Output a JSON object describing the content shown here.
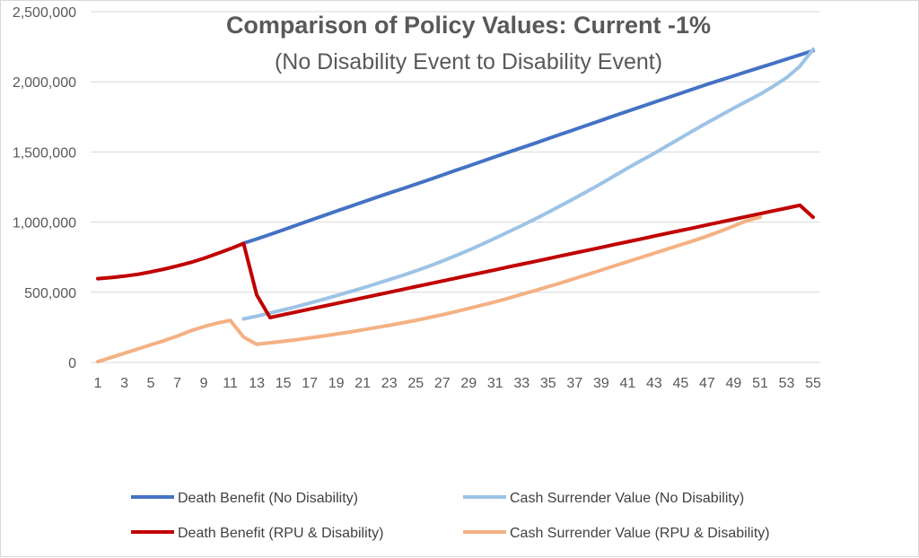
{
  "chart_data": {
    "type": "line",
    "title": "Comparison of Policy Values: Current -1%",
    "subtitle": "(No Disability Event to Disability Event)",
    "xlabel": "",
    "ylabel": "",
    "ylim": [
      0,
      2500000
    ],
    "y_ticks": [
      0,
      500000,
      1000000,
      1500000,
      2000000,
      2500000
    ],
    "y_tick_labels": [
      "0",
      "500,000",
      "1,000,000",
      "1,500,000",
      "2,000,000",
      "2,500,000"
    ],
    "x_tick_labels": [
      "1",
      "3",
      "5",
      "7",
      "9",
      "11",
      "13",
      "15",
      "17",
      "19",
      "21",
      "23",
      "25",
      "27",
      "29",
      "31",
      "33",
      "35",
      "37",
      "39",
      "41",
      "43",
      "45",
      "47",
      "49",
      "51",
      "53",
      "55"
    ],
    "grid": "horizontal",
    "legend_position": "bottom",
    "series": [
      {
        "name": "Death Benefit (No Disability)",
        "color": "#4472c4",
        "x_start": 12,
        "values": [
          850000,
          880000,
          912000,
          945000,
          978000,
          1012000,
          1045000,
          1078000,
          1110000,
          1143000,
          1175000,
          1207000,
          1238000,
          1270000,
          1302000,
          1335000,
          1368000,
          1400000,
          1433000,
          1466000,
          1498000,
          1530000,
          1562000,
          1595000,
          1628000,
          1660000,
          1693000,
          1725000,
          1758000,
          1790000,
          1822000,
          1854000,
          1886000,
          1918000,
          1950000,
          1982000,
          2012000,
          2042000,
          2072000,
          2102000,
          2132000,
          2162000,
          2192000,
          2222000
        ]
      },
      {
        "name": "Cash Surrender Value (No Disability)",
        "color": "#9dc3e6",
        "x_start": 12,
        "values": [
          310000,
          330000,
          352000,
          375000,
          398000,
          423000,
          449000,
          476000,
          503000,
          531000,
          560000,
          590000,
          620000,
          652000,
          686000,
          722000,
          760000,
          800000,
          842000,
          886000,
          930000,
          975000,
          1022000,
          1070000,
          1120000,
          1170000,
          1222000,
          1275000,
          1330000,
          1385000,
          1438000,
          1490000,
          1545000,
          1600000,
          1655000,
          1708000,
          1760000,
          1812000,
          1862000,
          1912000,
          1968000,
          2030000,
          2110000,
          2232000
        ]
      },
      {
        "name": "Death Benefit (RPU & Disability)",
        "color": "#c00000",
        "x_start": 1,
        "values": [
          597000,
          605000,
          615000,
          628000,
          645000,
          665000,
          688000,
          712000,
          742000,
          775000,
          810000,
          848000,
          480000,
          320000,
          340000,
          360000,
          380000,
          400000,
          420000,
          440000,
          460000,
          480000,
          500000,
          520000,
          540000,
          560000,
          580000,
          600000,
          620000,
          640000,
          660000,
          680000,
          700000,
          720000,
          740000,
          760000,
          780000,
          800000,
          820000,
          840000,
          860000,
          880000,
          900000,
          920000,
          940000,
          960000,
          980000,
          1000000,
          1020000,
          1040000,
          1060000,
          1080000,
          1100000,
          1120000,
          1035000
        ]
      },
      {
        "name": "Cash Surrender Value (RPU & Disability)",
        "color": "#f4b183",
        "x_start": 1,
        "values": [
          5000,
          35000,
          65000,
          95000,
          125000,
          155000,
          188000,
          225000,
          255000,
          280000,
          300000,
          180000,
          130000,
          140000,
          150000,
          162000,
          175000,
          188000,
          202000,
          217000,
          232000,
          248000,
          265000,
          282000,
          300000,
          320000,
          340000,
          362000,
          385000,
          408000,
          432000,
          458000,
          485000,
          512000,
          540000,
          568000,
          598000,
          628000,
          658000,
          688000,
          718000,
          748000,
          778000,
          808000,
          838000,
          868000,
          900000,
          935000,
          972000,
          1010000,
          1035000
        ]
      }
    ]
  }
}
